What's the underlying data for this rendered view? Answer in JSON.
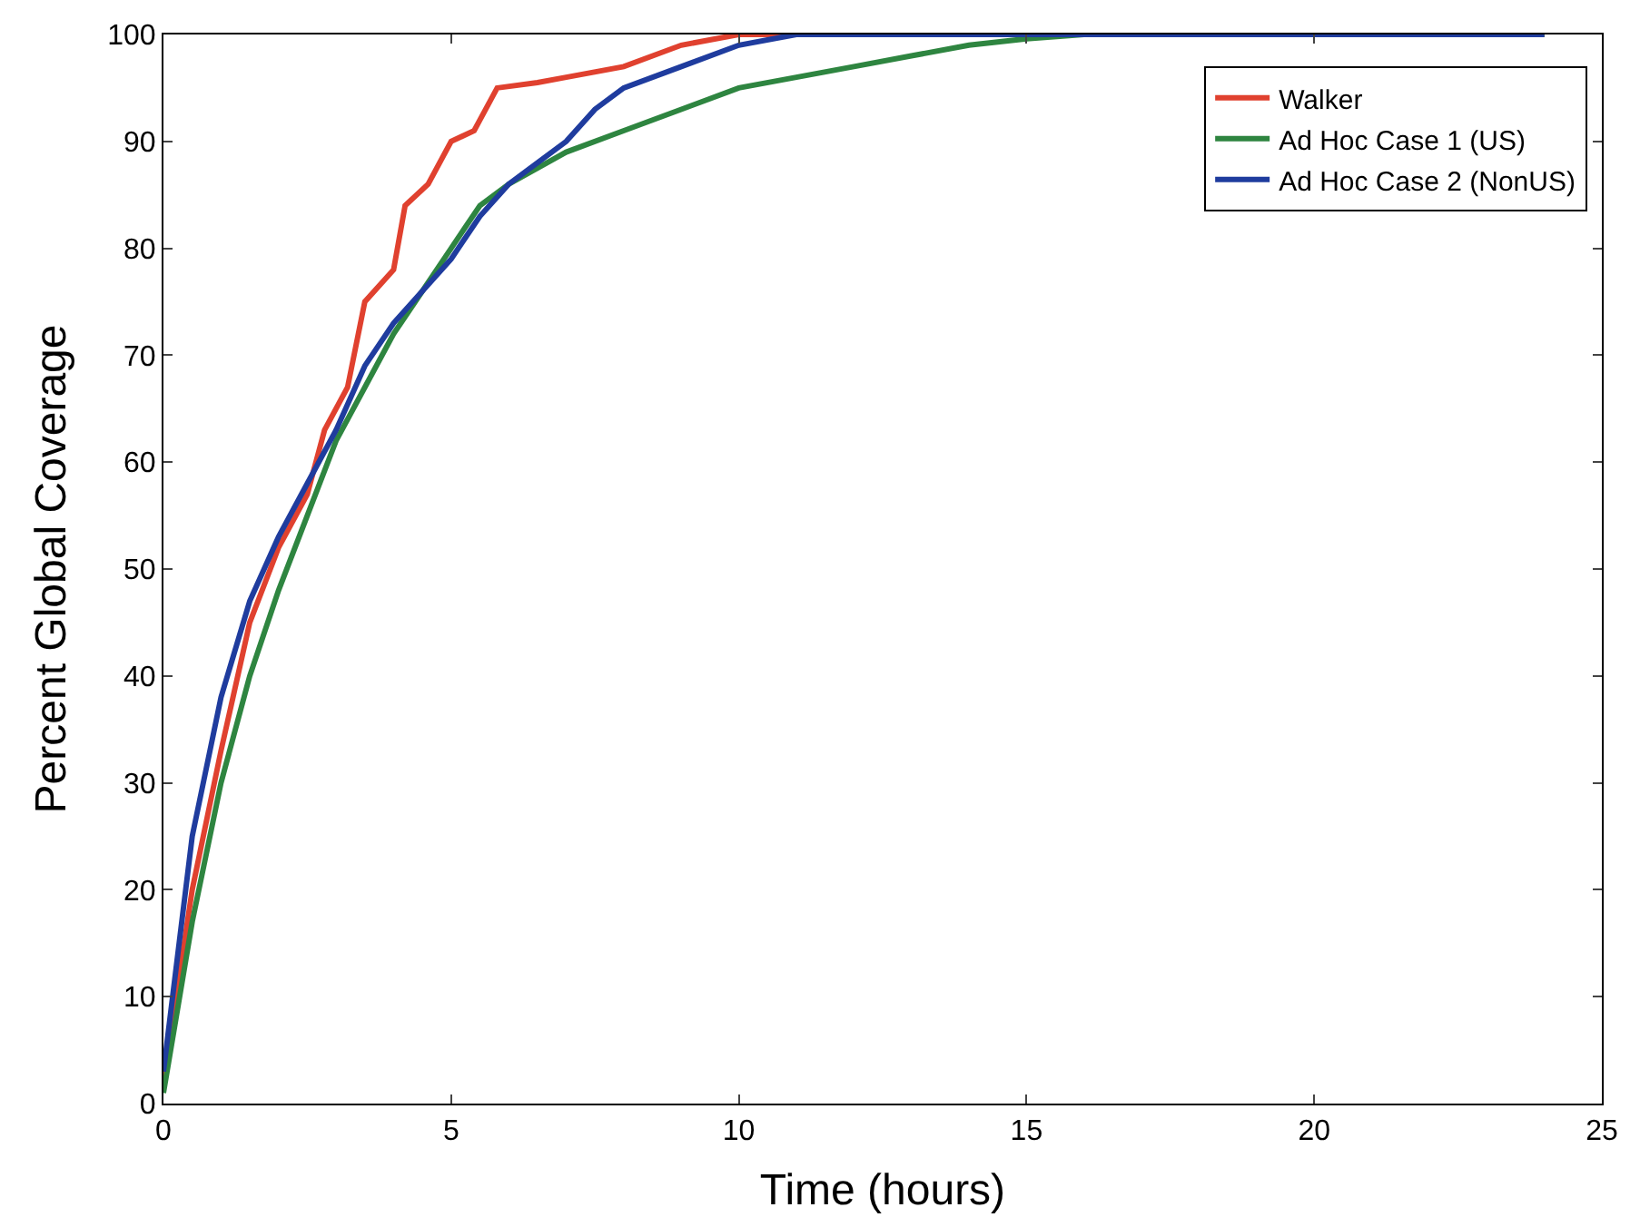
{
  "chart_data": {
    "type": "line",
    "xlabel": "Time (hours)",
    "ylabel": "Percent Global Coverage",
    "xlim": [
      0,
      25
    ],
    "xticks": [
      0,
      5,
      10,
      15,
      20,
      25
    ],
    "ylim": [
      0,
      100
    ],
    "yticks": [
      0,
      10,
      20,
      30,
      40,
      50,
      60,
      70,
      80,
      90,
      100
    ],
    "legend": "top right",
    "line_style": "solid",
    "series": [
      {
        "name": "Walker",
        "color": "#e0412f",
        "x": [
          0,
          0.5,
          1,
          1.5,
          2,
          2.5,
          2.8,
          3.2,
          3.5,
          4,
          4.2,
          4.6,
          5,
          5.4,
          5.8,
          6.5,
          7,
          8,
          9,
          10,
          11,
          24
        ],
        "values": [
          2,
          20,
          33,
          45,
          52,
          57,
          63,
          67,
          75,
          78,
          84,
          86,
          90,
          91,
          95,
          95.5,
          96,
          97,
          99,
          100,
          100,
          100
        ]
      },
      {
        "name": "Ad Hoc Case 1 (US)",
        "color": "#2e8540",
        "x": [
          0,
          0.5,
          1,
          1.5,
          2,
          2.5,
          3,
          3.5,
          4,
          4.5,
          5,
          5.5,
          6,
          7,
          8,
          9,
          10,
          11,
          12,
          13,
          14,
          15,
          16,
          24
        ],
        "values": [
          1,
          17,
          30,
          40,
          48,
          55,
          62,
          67,
          72,
          76,
          80,
          84,
          86,
          89,
          91,
          93,
          95,
          96,
          97,
          98,
          99,
          99.6,
          100,
          100
        ]
      },
      {
        "name": "Ad Hoc Case 2 (NonUS)",
        "color": "#1f3c9e",
        "x": [
          0,
          0.5,
          1,
          1.5,
          2,
          2.5,
          3,
          3.5,
          4,
          4.5,
          5,
          5.5,
          6,
          6.5,
          7,
          7.5,
          8,
          9,
          10,
          11,
          24
        ],
        "values": [
          3,
          25,
          38,
          47,
          53,
          58,
          63,
          69,
          73,
          76,
          79,
          83,
          86,
          88,
          90,
          93,
          95,
          97,
          99,
          100,
          100
        ]
      }
    ]
  }
}
